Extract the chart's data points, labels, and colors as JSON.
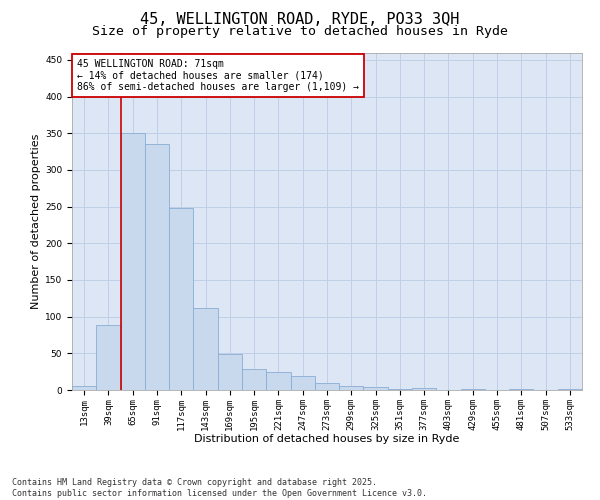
{
  "title_line1": "45, WELLINGTON ROAD, RYDE, PO33 3QH",
  "title_line2": "Size of property relative to detached houses in Ryde",
  "xlabel": "Distribution of detached houses by size in Ryde",
  "ylabel": "Number of detached properties",
  "bar_color": "#c8d9ee",
  "bar_edge_color": "#8aadd4",
  "categories": [
    "13sqm",
    "39sqm",
    "65sqm",
    "91sqm",
    "117sqm",
    "143sqm",
    "169sqm",
    "195sqm",
    "221sqm",
    "247sqm",
    "273sqm",
    "299sqm",
    "325sqm",
    "351sqm",
    "377sqm",
    "403sqm",
    "429sqm",
    "455sqm",
    "481sqm",
    "507sqm",
    "533sqm"
  ],
  "values": [
    5,
    88,
    350,
    335,
    248,
    112,
    49,
    29,
    24,
    19,
    10,
    5,
    4,
    1,
    3,
    0,
    1,
    0,
    1,
    0,
    2
  ],
  "vline_color": "#cc0000",
  "annotation_text": "45 WELLINGTON ROAD: 71sqm\n← 14% of detached houses are smaller (174)\n86% of semi-detached houses are larger (1,109) →",
  "annotation_box_color": "#cc0000",
  "annotation_bg_color": "#ffffff",
  "ylim": [
    0,
    460
  ],
  "yticks": [
    0,
    50,
    100,
    150,
    200,
    250,
    300,
    350,
    400,
    450
  ],
  "grid_color": "#c0cfe8",
  "bg_color": "#dce6f5",
  "footer_text": "Contains HM Land Registry data © Crown copyright and database right 2025.\nContains public sector information licensed under the Open Government Licence v3.0.",
  "title_fontsize": 11,
  "subtitle_fontsize": 9.5,
  "tick_fontsize": 6.5,
  "axis_label_fontsize": 8,
  "annotation_fontsize": 7,
  "footer_fontsize": 6
}
